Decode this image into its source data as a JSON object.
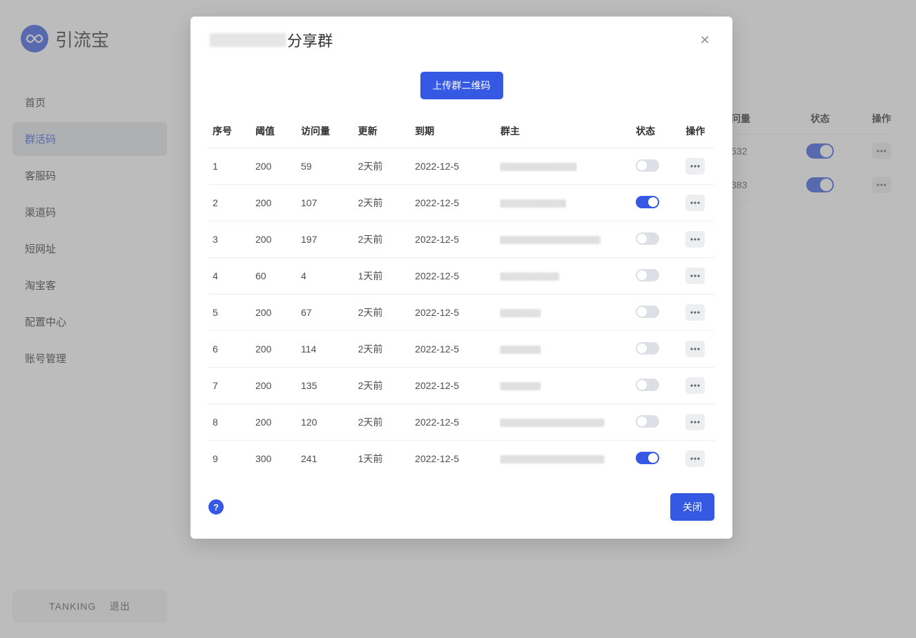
{
  "brand": {
    "name": "引流宝"
  },
  "sidebar": {
    "items": [
      {
        "label": "首页"
      },
      {
        "label": "群活码"
      },
      {
        "label": "客服码"
      },
      {
        "label": "渠道码"
      },
      {
        "label": "短网址"
      },
      {
        "label": "淘宝客"
      },
      {
        "label": "配置中心"
      },
      {
        "label": "账号管理"
      }
    ],
    "footer_user": "TANKING",
    "footer_logout": "退出"
  },
  "background_table": {
    "headers": {
      "pv": "问量",
      "status": "状态",
      "ops": "操作"
    },
    "rows": [
      {
        "pv": "532",
        "status_on": true
      },
      {
        "pv": "383",
        "status_on": true
      }
    ]
  },
  "modal": {
    "title_suffix": "分享群",
    "upload_button": "上传群二维码",
    "footer_close": "关闭",
    "help_char": "?",
    "columns": {
      "seq": "序号",
      "threshold": "阈值",
      "pv": "访问量",
      "update": "更新",
      "expire": "到期",
      "owner": "群主",
      "status": "状态",
      "ops": "操作"
    },
    "rows": [
      {
        "seq": "1",
        "threshold": "200",
        "pv": "59",
        "update": "2天前",
        "expire": "2022-12-5",
        "owner_w": "ow-110",
        "status_on": false
      },
      {
        "seq": "2",
        "threshold": "200",
        "pv": "107",
        "update": "2天前",
        "expire": "2022-12-5",
        "owner_w": "ow-95",
        "status_on": true
      },
      {
        "seq": "3",
        "threshold": "200",
        "pv": "197",
        "update": "2天前",
        "expire": "2022-12-5",
        "owner_w": "ow-145",
        "status_on": false
      },
      {
        "seq": "4",
        "threshold": "60",
        "pv": "4",
        "update": "1天前",
        "expire": "2022-12-5",
        "owner_w": "ow-85",
        "status_on": false
      },
      {
        "seq": "5",
        "threshold": "200",
        "pv": "67",
        "update": "2天前",
        "expire": "2022-12-5",
        "owner_w": "ow-58",
        "status_on": false
      },
      {
        "seq": "6",
        "threshold": "200",
        "pv": "114",
        "update": "2天前",
        "expire": "2022-12-5",
        "owner_w": "ow-58",
        "status_on": false
      },
      {
        "seq": "7",
        "threshold": "200",
        "pv": "135",
        "update": "2天前",
        "expire": "2022-12-5",
        "owner_w": "ow-58",
        "status_on": false
      },
      {
        "seq": "8",
        "threshold": "200",
        "pv": "120",
        "update": "2天前",
        "expire": "2022-12-5",
        "owner_w": "ow-150",
        "status_on": false
      },
      {
        "seq": "9",
        "threshold": "300",
        "pv": "241",
        "update": "1天前",
        "expire": "2022-12-5",
        "owner_w": "ow-150",
        "status_on": true
      }
    ]
  },
  "colors": {
    "primary": "#3659e3",
    "toggle_off": "#dcdfe6",
    "text": "#303133"
  }
}
